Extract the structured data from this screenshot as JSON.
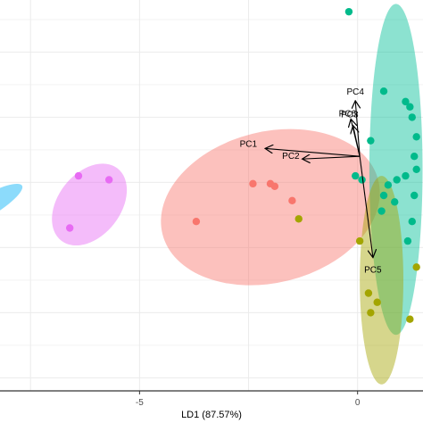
{
  "chart_data": {
    "type": "scatter",
    "xlabel": "LD1 (87.57%)",
    "x_ticks": [
      -5,
      0
    ],
    "xlim": [
      -8.2,
      1.5
    ],
    "ylim": [
      -1.6,
      1.4
    ],
    "grid": true,
    "background": "#ffffff",
    "gridline_color": "#ebebeb",
    "groups": [
      {
        "color": "#E76BF3",
        "ellipse_fill": "#E76BF3",
        "points": [
          [
            -6.4,
            0.05
          ],
          [
            -5.7,
            0.02
          ],
          [
            -6.6,
            -0.35
          ]
        ],
        "ellipse": {
          "cx": -6.15,
          "cy": -0.17,
          "rx": 2.1,
          "ry": 0.24,
          "angle_deg": 52
        }
      },
      {
        "color": "#F8766D",
        "ellipse_fill": "#F8766D",
        "points": [
          [
            -3.7,
            -0.3
          ],
          [
            -2.4,
            -0.01
          ],
          [
            -2.0,
            -0.01
          ],
          [
            -1.9,
            -0.03
          ],
          [
            -1.5,
            -0.14
          ]
        ],
        "ellipse": {
          "cx": -2.0,
          "cy": -0.19,
          "rx": 5.1,
          "ry": 0.58,
          "angle_deg": 14
        }
      },
      {
        "color": "#00BA8B",
        "ellipse_fill": "#00BF96",
        "points": [
          [
            -0.2,
            1.31
          ],
          [
            1.2,
            0.58
          ],
          [
            0.6,
            0.7
          ],
          [
            1.1,
            0.62
          ],
          [
            1.25,
            0.5
          ],
          [
            1.35,
            0.35
          ],
          [
            1.3,
            0.2
          ],
          [
            1.35,
            0.1
          ],
          [
            1.1,
            0.05
          ],
          [
            0.9,
            0.02
          ],
          [
            0.7,
            -0.02
          ],
          [
            1.3,
            -0.1
          ],
          [
            0.85,
            -0.15
          ],
          [
            0.6,
            -0.1
          ],
          [
            0.55,
            -0.22
          ],
          [
            1.15,
            -0.45
          ],
          [
            0.3,
            0.32
          ],
          [
            0.1,
            0.02
          ],
          [
            1.25,
            -0.3
          ],
          [
            -0.05,
            0.05
          ]
        ],
        "ellipse": {
          "cx": 0.88,
          "cy": 0.1,
          "rx": 1.22,
          "ry": 1.27,
          "angle_deg": 0
        }
      },
      {
        "color": "#A3A500",
        "ellipse_fill": "#A3A500",
        "points": [
          [
            -1.35,
            -0.28
          ],
          [
            0.05,
            -0.45
          ],
          [
            0.25,
            -0.85
          ],
          [
            0.45,
            -0.92
          ],
          [
            0.3,
            -1.0
          ],
          [
            1.2,
            -1.05
          ],
          [
            1.35,
            -0.65
          ]
        ],
        "ellipse": {
          "cx": 0.55,
          "cy": -0.75,
          "rx": 1.0,
          "ry": 0.8,
          "angle_deg": 0
        }
      },
      {
        "color": "#35A2FF",
        "ellipse_fill": "#00B0F6",
        "points": [],
        "ellipse": {
          "cx": -8.6,
          "cy": -0.2,
          "rx": 0.5,
          "ry": 0.35,
          "angle_deg": -60
        }
      }
    ],
    "loadings": [
      {
        "label": "PC1",
        "x": -2.1,
        "y": 0.26
      },
      {
        "label": "PC2",
        "x": -1.25,
        "y": 0.18
      },
      {
        "label": "PC3",
        "x": -0.1,
        "y": 0.43
      },
      {
        "label": "PC4",
        "x": -0.05,
        "y": 0.62
      },
      {
        "label": "PC5",
        "x": 0.35,
        "y": -0.57
      },
      {
        "label": "PC6",
        "x": -0.15,
        "y": 0.48
      }
    ],
    "loading_origin": [
      0.05,
      0.2
    ]
  }
}
